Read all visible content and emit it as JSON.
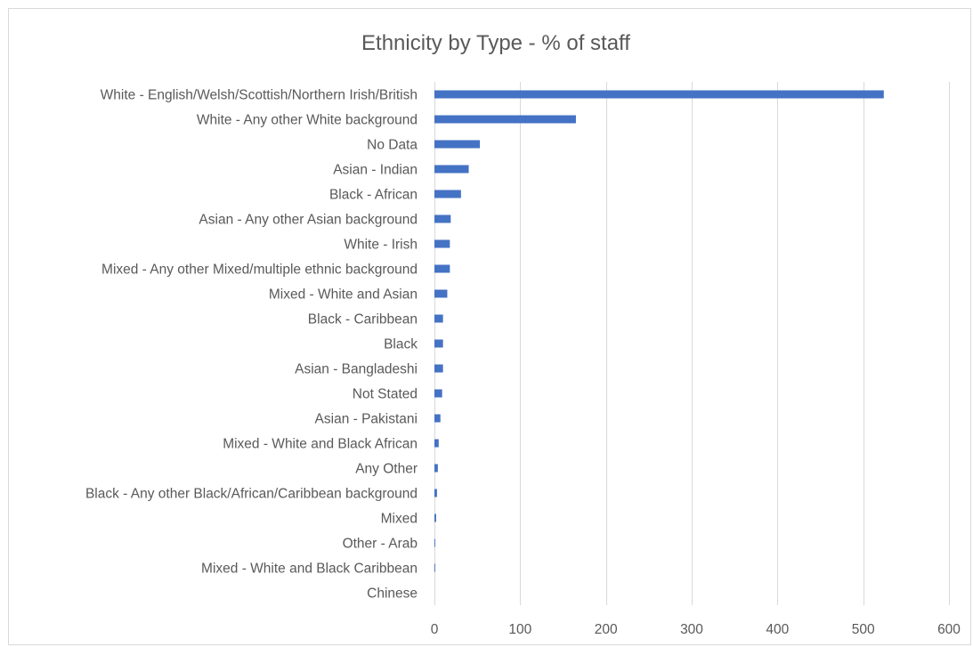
{
  "chart_data": {
    "type": "bar",
    "orientation": "horizontal",
    "title": "Ethnicity by Type - % of staff",
    "xlabel": "",
    "ylabel": "",
    "categories": [
      "White - English/Welsh/Scottish/Northern Irish/British",
      "White - Any other White background",
      "No Data",
      "Asian - Indian",
      "Black - African",
      "Asian - Any other Asian background",
      "White - Irish",
      "Mixed - Any other Mixed/multiple ethnic background",
      "Mixed - White and Asian",
      "Black - Caribbean",
      "Black",
      "Asian - Bangladeshi",
      "Not Stated",
      "Asian - Pakistani",
      "Mixed - White and Black African",
      "Any Other",
      "Black - Any other Black/African/Caribbean background",
      "Mixed",
      "Other - Arab",
      "Mixed - White and Black Caribbean",
      "Chinese"
    ],
    "values": [
      524,
      165,
      53,
      40,
      31,
      19,
      18,
      18,
      15,
      10,
      10,
      10,
      9,
      7,
      5,
      4,
      3,
      2,
      1,
      1,
      0
    ],
    "xlim": [
      0,
      600
    ],
    "xticks": [
      0,
      100,
      200,
      300,
      400,
      500,
      600
    ],
    "grid": true,
    "bar_color": "#4472c4",
    "grid_color": "#d9d9d9",
    "text_color": "#595959"
  }
}
